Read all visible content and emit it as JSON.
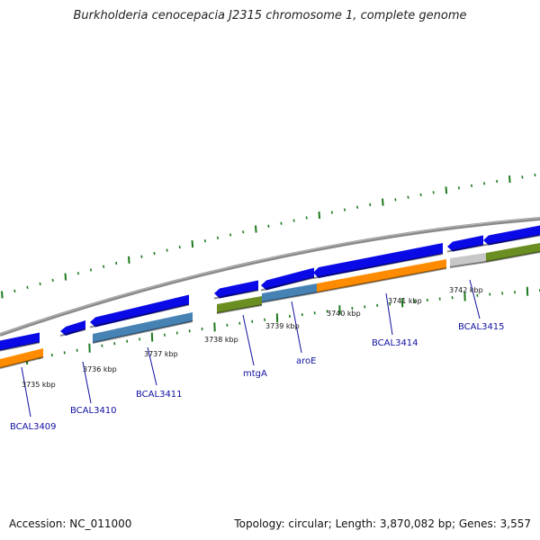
{
  "title": "Burkholderia cenocepacia J2315 chromosome 1, complete genome",
  "footer": {
    "accession": "Accession: NC_011000",
    "stats": "Topology: circular; Length: 3,870,082 bp; Genes: 3,557"
  },
  "colors": {
    "backbone": "#8a8a8a",
    "cds_forward": "#0a0ae6",
    "ticks": "#1e7a1e",
    "gene_label": "#1010a0",
    "orange": "#ff8c00",
    "steelblue": "#4682b4",
    "olive": "#6b8e23",
    "gray": "#c8c8c8"
  },
  "scale_labels": [
    {
      "text": "3735 kbp"
    },
    {
      "text": "3736 kbp"
    },
    {
      "text": "3737 kbp"
    },
    {
      "text": "3738 kbp"
    },
    {
      "text": "3739 kbp"
    },
    {
      "text": "3740 kbp"
    },
    {
      "text": "3741 kbp"
    },
    {
      "text": "3742 kbp"
    }
  ],
  "gene_labels": [
    {
      "text": "BCAL3409"
    },
    {
      "text": "BCAL3410"
    },
    {
      "text": "BCAL3411"
    },
    {
      "text": "mtgA"
    },
    {
      "text": "aroE"
    },
    {
      "text": "BCAL3414"
    },
    {
      "text": "BCAL3415"
    }
  ]
}
